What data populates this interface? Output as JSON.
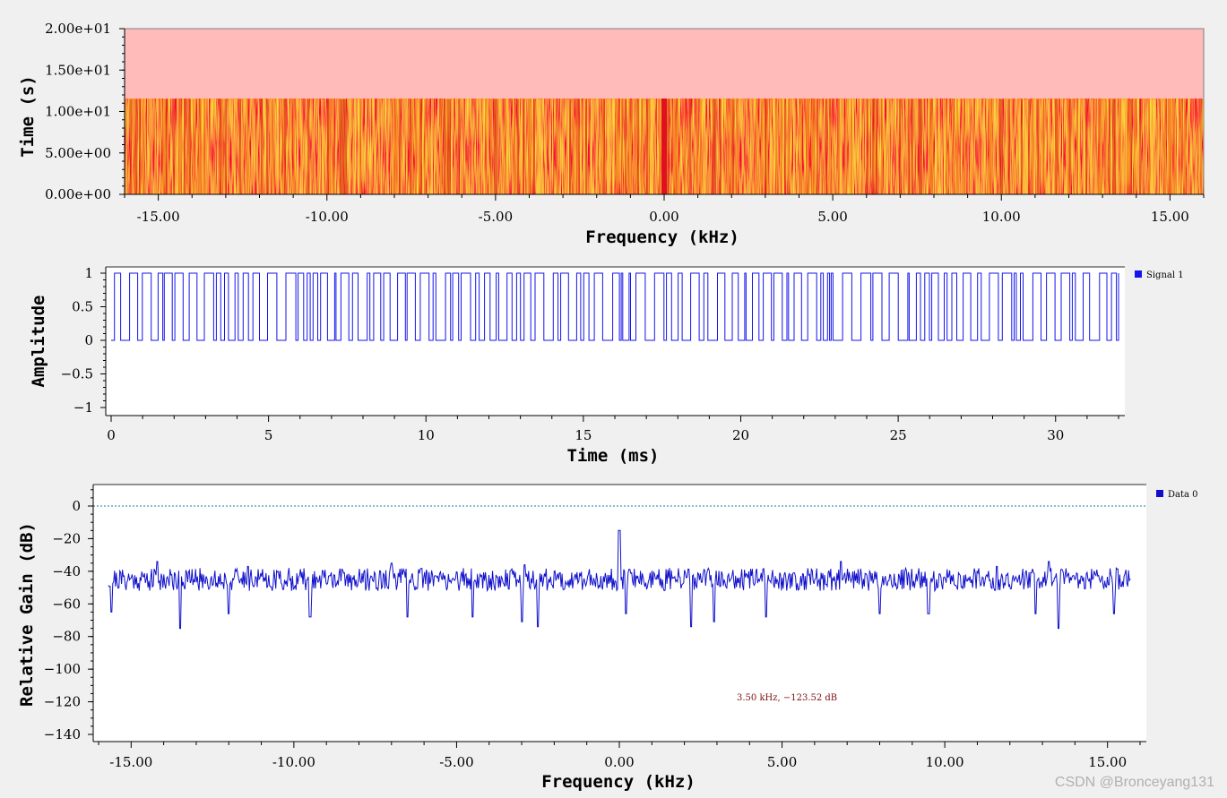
{
  "chart_data": [
    {
      "type": "heatmap",
      "title": "",
      "xlabel": "Frequency (kHz)",
      "ylabel": "Time (s)",
      "xlim": [
        -16,
        16
      ],
      "ylim": [
        0,
        20
      ],
      "xticks": [
        "-15.00",
        "-10.00",
        "-5.00",
        "0.00",
        "5.00",
        "10.00",
        "15.00"
      ],
      "yticks": [
        "0.00e+00",
        "5.00e+00",
        "1.00e+01",
        "1.50e+01",
        "2.00e+01"
      ],
      "filled_until_time": 11.5,
      "carrier_line_kHz": 0,
      "colors": {
        "empty": "#ffbaba",
        "low": "#d92a10",
        "mid": "#f07814",
        "high": "#ffe040",
        "carrier": "#e01020"
      }
    },
    {
      "type": "line",
      "title": "",
      "xlabel": "Time (ms)",
      "ylabel": "Amplitude",
      "xlim": [
        0,
        32
      ],
      "ylim": [
        -1,
        1
      ],
      "xticks": [
        "0",
        "5",
        "10",
        "15",
        "20",
        "25",
        "30"
      ],
      "yticks": [
        "1",
        "0.5",
        "0",
        "−0.5",
        "−1"
      ],
      "signal": "binary square wave between 0 and 1",
      "series": [
        {
          "name": "Signal 1",
          "color": "#1515ee"
        }
      ],
      "legend_position": "top-right"
    },
    {
      "type": "line",
      "title": "",
      "xlabel": "Frequency (kHz)",
      "ylabel": "Relative Gain (dB)",
      "xlim": [
        -16,
        16
      ],
      "ylim": [
        -140,
        10
      ],
      "xticks": [
        "-15.00",
        "-10.00",
        "-5.00",
        "0.00",
        "5.00",
        "10.00",
        "15.00"
      ],
      "yticks": [
        "0",
        "−20",
        "−40",
        "−60",
        "−80",
        "−100",
        "−120",
        "−140"
      ],
      "noise_floor_dB": -45,
      "peak": {
        "x": 0,
        "y": -15
      },
      "reference_line_dB": 0,
      "series": [
        {
          "name": "Data 0",
          "color": "#1010cc"
        }
      ],
      "marker_label": "3.50 kHz, −123.52 dB",
      "legend_position": "top-right"
    }
  ],
  "watermark": "CSDN @Bronceyang131"
}
